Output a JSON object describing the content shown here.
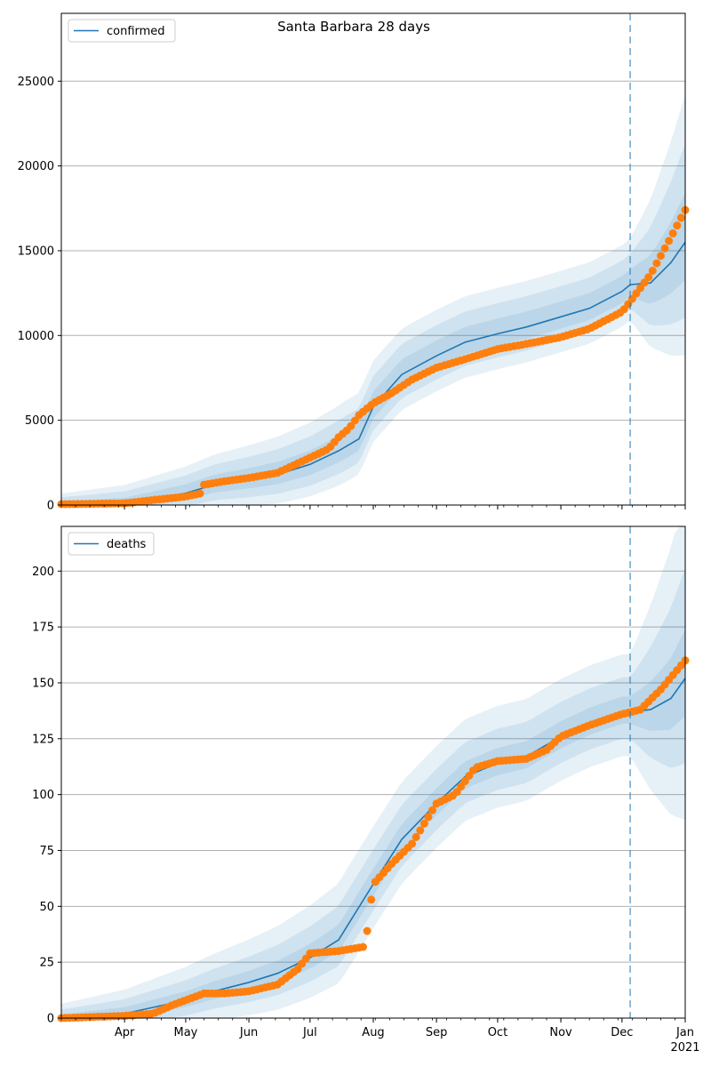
{
  "title": "Santa Barbara 28 days",
  "colors": {
    "model": "#1f77b4",
    "observed": "#ff7f0e",
    "band": "#1f77b4",
    "grid": "#b0b0b0"
  },
  "x_axis": {
    "month_labels": [
      "Apr",
      "May",
      "Jun",
      "Jul",
      "Aug",
      "Sep",
      "Oct",
      "Nov",
      "Dec",
      "Jan"
    ],
    "year_label": "2021",
    "start": "2020-03-01",
    "end": "2021-01-01",
    "forecast_start": "2020-12-05"
  },
  "chart_data": [
    {
      "type": "line",
      "title": "",
      "legend": [
        "confirmed"
      ],
      "legend_position": "top-left",
      "grid": "horizontal",
      "ylim": [
        0,
        29000
      ],
      "yticks": [
        0,
        5000,
        10000,
        15000,
        20000,
        25000
      ],
      "ytick_labels": [
        "0",
        "5000",
        "10000",
        "15000",
        "20000",
        "25000"
      ],
      "series": [
        {
          "name": "confirmed",
          "x": [
            "2020-03-01",
            "2020-04-01",
            "2020-05-01",
            "2020-05-15",
            "2020-06-01",
            "2020-06-15",
            "2020-07-01",
            "2020-07-15",
            "2020-07-25",
            "2020-08-01",
            "2020-08-15",
            "2020-09-01",
            "2020-09-15",
            "2020-10-01",
            "2020-10-15",
            "2020-11-01",
            "2020-11-15",
            "2020-12-01",
            "2020-12-05",
            "2020-12-15",
            "2020-12-25",
            "2021-01-01"
          ],
          "y": [
            0,
            50,
            700,
            1200,
            1500,
            1800,
            2400,
            3200,
            3900,
            5800,
            7700,
            8800,
            9600,
            10100,
            10500,
            11100,
            11600,
            12600,
            13000,
            13100,
            14300,
            15500
          ]
        }
      ],
      "observed": {
        "x": [
          "2020-03-01",
          "2020-04-01",
          "2020-04-15",
          "2020-05-01",
          "2020-05-09",
          "2020-05-10",
          "2020-05-20",
          "2020-06-01",
          "2020-06-15",
          "2020-07-01",
          "2020-07-10",
          "2020-07-15",
          "2020-07-20",
          "2020-07-25",
          "2020-08-01",
          "2020-08-10",
          "2020-08-20",
          "2020-09-01",
          "2020-09-15",
          "2020-10-01",
          "2020-10-15",
          "2020-11-01",
          "2020-11-15",
          "2020-12-01",
          "2020-12-05",
          "2020-12-15",
          "2020-12-25",
          "2021-01-01"
        ],
        "y": [
          50,
          100,
          300,
          500,
          700,
          1200,
          1400,
          1600,
          1900,
          2800,
          3300,
          4000,
          4500,
          5300,
          6000,
          6600,
          7400,
          8100,
          8600,
          9200,
          9500,
          9900,
          10400,
          11400,
          12000,
          13600,
          15800,
          17400
        ]
      },
      "band_spread": [
        0.2,
        0.4,
        0.6
      ]
    },
    {
      "type": "line",
      "title": "",
      "legend": [
        "deaths"
      ],
      "legend_position": "top-left",
      "grid": "horizontal",
      "ylim": [
        0,
        220
      ],
      "yticks": [
        0,
        25,
        50,
        75,
        100,
        125,
        150,
        175,
        200
      ],
      "ytick_labels": [
        "0",
        "25",
        "50",
        "75",
        "100",
        "125",
        "150",
        "175",
        "200"
      ],
      "series": [
        {
          "name": "deaths",
          "x": [
            "2020-03-01",
            "2020-04-01",
            "2020-05-01",
            "2020-05-15",
            "2020-06-01",
            "2020-06-15",
            "2020-07-01",
            "2020-07-15",
            "2020-08-01",
            "2020-08-15",
            "2020-09-01",
            "2020-09-15",
            "2020-10-01",
            "2020-10-15",
            "2020-11-01",
            "2020-11-15",
            "2020-12-01",
            "2020-12-05",
            "2020-12-15",
            "2020-12-25",
            "2021-01-01"
          ],
          "y": [
            0,
            2,
            8,
            12,
            16,
            20,
            27,
            35,
            60,
            80,
            96,
            108,
            114,
            117,
            126,
            132,
            137,
            137,
            138,
            143,
            152
          ]
        }
      ],
      "observed": {
        "x": [
          "2020-03-01",
          "2020-04-01",
          "2020-04-15",
          "2020-04-25",
          "2020-05-01",
          "2020-05-10",
          "2020-05-20",
          "2020-06-01",
          "2020-06-15",
          "2020-06-25",
          "2020-07-01",
          "2020-07-15",
          "2020-07-28",
          "2020-08-01",
          "2020-08-10",
          "2020-08-20",
          "2020-09-01",
          "2020-09-10",
          "2020-09-20",
          "2020-10-01",
          "2020-10-15",
          "2020-10-25",
          "2020-11-01",
          "2020-11-15",
          "2020-12-01",
          "2020-12-10",
          "2020-12-20",
          "2021-01-01"
        ],
        "y": [
          0,
          1,
          2,
          6,
          8,
          11,
          11,
          12,
          15,
          22,
          29,
          30,
          32,
          60,
          69,
          78,
          96,
          100,
          112,
          115,
          116,
          120,
          126,
          131,
          136,
          138,
          147,
          160
        ]
      },
      "band_spread": [
        0.2,
        0.45,
        0.75
      ]
    }
  ]
}
